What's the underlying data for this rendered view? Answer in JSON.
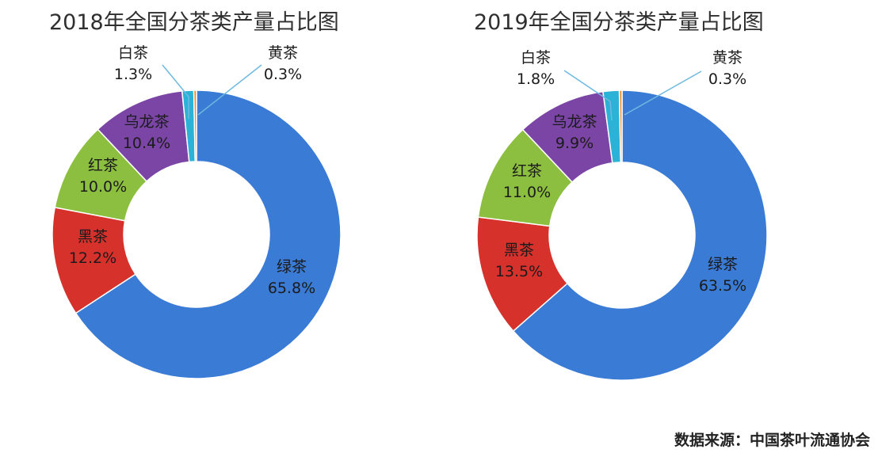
{
  "chart_data": [
    {
      "type": "pie",
      "style": "donut",
      "title": "2018年全国分茶类产量占比图",
      "slices": [
        {
          "label": "绿茶",
          "value": 65.8,
          "pct": "65.8%",
          "color": "#3a7bd5"
        },
        {
          "label": "黑茶",
          "value": 12.2,
          "pct": "12.2%",
          "color": "#d7312c"
        },
        {
          "label": "红茶",
          "value": 10.0,
          "pct": "10.0%",
          "color": "#8cbf3f"
        },
        {
          "label": "乌龙茶",
          "value": 10.4,
          "pct": "10.4%",
          "color": "#7b45a6"
        },
        {
          "label": "白茶",
          "value": 1.3,
          "pct": "1.3%",
          "color": "#2bb2d6"
        },
        {
          "label": "黄茶",
          "value": 0.3,
          "pct": "0.3%",
          "color": "#f08a24"
        }
      ]
    },
    {
      "type": "pie",
      "style": "donut",
      "title": "2019年全国分茶类产量占比图",
      "slices": [
        {
          "label": "绿茶",
          "value": 63.5,
          "pct": "63.5%",
          "color": "#3a7bd5"
        },
        {
          "label": "黑茶",
          "value": 13.5,
          "pct": "13.5%",
          "color": "#d7312c"
        },
        {
          "label": "红茶",
          "value": 11.0,
          "pct": "11.0%",
          "color": "#8cbf3f"
        },
        {
          "label": "乌龙茶",
          "value": 9.9,
          "pct": "9.9%",
          "color": "#7b45a6"
        },
        {
          "label": "白茶",
          "value": 1.8,
          "pct": "1.8%",
          "color": "#2bb2d6"
        },
        {
          "label": "黄茶",
          "value": 0.3,
          "pct": "0.3%",
          "color": "#f08a24"
        }
      ]
    }
  ],
  "source": "数据来源：中国茶叶流通协会"
}
